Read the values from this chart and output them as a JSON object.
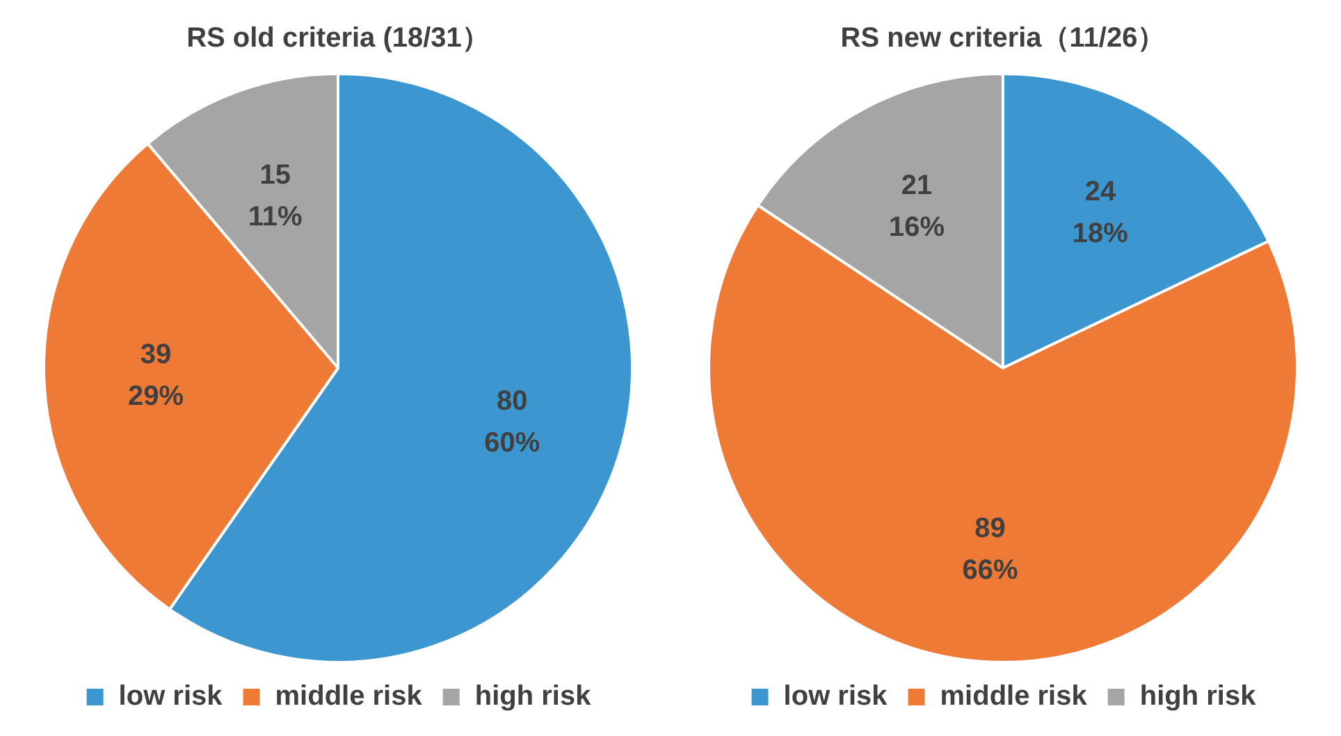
{
  "chart_data": [
    {
      "type": "pie",
      "title": "RS old criteria (18/31）",
      "categories": [
        "low risk",
        "middle risk",
        "high risk"
      ],
      "values": [
        80,
        39,
        15
      ],
      "colors": [
        "#3c97d0",
        "#ee7a35",
        "#a5a5a5"
      ],
      "value_labels": [
        "80\n60%",
        "39\n29%",
        "15\n11%"
      ],
      "legend": "bottom"
    },
    {
      "type": "pie",
      "title": "RS new criteria（11/26）",
      "categories": [
        "low risk",
        "middle risk",
        "high risk"
      ],
      "values": [
        24,
        89,
        21
      ],
      "colors": [
        "#3c97d0",
        "#ee7a35",
        "#a5a5a5"
      ],
      "value_labels": [
        "24\n18%",
        "89\n66%",
        "21\n16%"
      ],
      "legend": "bottom"
    }
  ]
}
